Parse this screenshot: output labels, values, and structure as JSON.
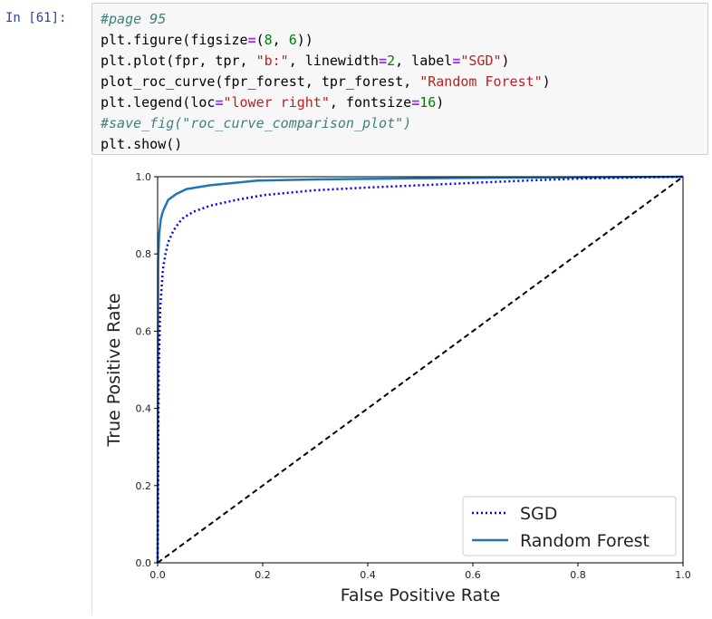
{
  "cell": {
    "prompt": "In [61]:",
    "lines": [
      [
        {
          "t": "#page 95",
          "c": "comment"
        }
      ],
      [
        {
          "t": "plt.figure(figsize"
        },
        {
          "t": "=",
          "c": "op"
        },
        {
          "t": "("
        },
        {
          "t": "8",
          "c": "num"
        },
        {
          "t": ", "
        },
        {
          "t": "6",
          "c": "num"
        },
        {
          "t": "))"
        }
      ],
      [
        {
          "t": "plt.plot(fpr, tpr, "
        },
        {
          "t": "\"b:\"",
          "c": "str"
        },
        {
          "t": ", linewidth"
        },
        {
          "t": "=",
          "c": "op"
        },
        {
          "t": "2",
          "c": "num"
        },
        {
          "t": ", label"
        },
        {
          "t": "=",
          "c": "op"
        },
        {
          "t": "\"SGD\"",
          "c": "str"
        },
        {
          "t": ")"
        }
      ],
      [
        {
          "t": "plot_roc_curve(fpr_forest, tpr_forest, "
        },
        {
          "t": "\"Random Forest\"",
          "c": "str"
        },
        {
          "t": ")"
        }
      ],
      [
        {
          "t": "plt.legend(loc"
        },
        {
          "t": "=",
          "c": "op"
        },
        {
          "t": "\"lower right\"",
          "c": "str"
        },
        {
          "t": ", fontsize"
        },
        {
          "t": "=",
          "c": "op"
        },
        {
          "t": "16",
          "c": "num"
        },
        {
          "t": ")"
        }
      ],
      [
        {
          "t": "#save_fig(\"roc_curve_comparison_plot\")",
          "c": "comment"
        }
      ],
      [
        {
          "t": "plt.show()"
        }
      ]
    ]
  },
  "chart_data": {
    "type": "line",
    "xlabel": "False Positive Rate",
    "ylabel": "True Positive Rate",
    "xlim": [
      0,
      1
    ],
    "ylim": [
      0,
      1
    ],
    "xticks": [
      "0.0",
      "0.2",
      "0.4",
      "0.6",
      "0.8",
      "1.0"
    ],
    "yticks": [
      "0.0",
      "0.2",
      "0.4",
      "0.6",
      "0.8",
      "1.0"
    ],
    "legend": {
      "placement": "lower-right"
    },
    "series": [
      {
        "name": "SGD",
        "style": "dotted",
        "color": "#0000ff",
        "x": [
          0,
          0.002,
          0.005,
          0.01,
          0.015,
          0.02,
          0.03,
          0.04,
          0.05,
          0.07,
          0.1,
          0.15,
          0.2,
          0.3,
          0.4,
          0.5,
          0.6,
          0.7,
          0.8,
          0.9,
          1.0
        ],
        "y": [
          0,
          0.5,
          0.66,
          0.76,
          0.8,
          0.83,
          0.86,
          0.88,
          0.895,
          0.91,
          0.925,
          0.94,
          0.952,
          0.965,
          0.972,
          0.978,
          0.984,
          0.99,
          0.995,
          0.998,
          1.0
        ]
      },
      {
        "name": "Random Forest",
        "style": "solid",
        "color": "#1f77b4",
        "x": [
          0,
          0.001,
          0.003,
          0.006,
          0.01,
          0.02,
          0.035,
          0.055,
          0.1,
          0.19,
          0.3,
          0.5,
          0.7,
          1.0
        ],
        "y": [
          0,
          0.78,
          0.85,
          0.89,
          0.91,
          0.94,
          0.955,
          0.968,
          0.978,
          0.99,
          0.993,
          0.996,
          0.998,
          1.0
        ]
      },
      {
        "name": "",
        "style": "dashed",
        "color": "#000000",
        "x": [
          0,
          1
        ],
        "y": [
          0,
          1
        ]
      }
    ]
  }
}
